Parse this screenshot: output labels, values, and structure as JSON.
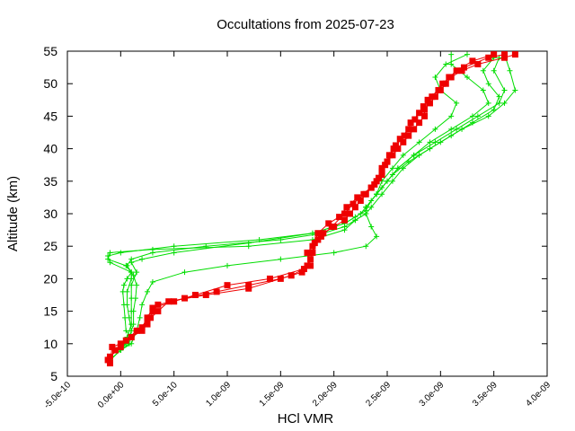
{
  "chart_data": {
    "type": "line",
    "title": "Occultations from 2025-07-23",
    "xlabel": "HCl VMR",
    "ylabel": "Altitude (km)",
    "xlim": [
      -5e-10,
      4e-09
    ],
    "ylim": [
      5,
      55
    ],
    "xticks": [
      "-5.0e-10",
      "0.0e+00",
      "5.0e-10",
      "1.0e-09",
      "1.5e-09",
      "2.0e-09",
      "2.5e-09",
      "3.0e-09",
      "3.5e-09",
      "4.0e-09"
    ],
    "xtick_values": [
      -5e-10,
      0,
      5e-10,
      1e-09,
      1.5e-09,
      2e-09,
      2.5e-09,
      3e-09,
      3.5e-09,
      4e-09
    ],
    "yticks": [
      "5",
      "10",
      "15",
      "20",
      "25",
      "30",
      "35",
      "40",
      "45",
      "50",
      "55"
    ],
    "ytick_values": [
      5,
      10,
      15,
      20,
      25,
      30,
      35,
      40,
      45,
      50,
      55
    ],
    "grid": false,
    "legend": "none",
    "colors": {
      "green": "#00dd00",
      "red": "#ee0000"
    },
    "series": [
      {
        "color": "#00dd00",
        "marker": "plus",
        "points": [
          [
            -1e-10,
            7.5
          ],
          [
            0.0,
            9
          ],
          [
            5e-11,
            10
          ],
          [
            1e-10,
            11
          ],
          [
            5e-11,
            12
          ],
          [
            4e-11,
            14
          ],
          [
            3e-11,
            16
          ],
          [
            2e-11,
            18
          ],
          [
            3e-11,
            19
          ],
          [
            6e-11,
            20
          ],
          [
            1e-10,
            21
          ],
          [
            5e-11,
            22
          ],
          [
            -1.2e-10,
            23
          ],
          [
            -1e-10,
            24
          ],
          [
            3e-10,
            24.5
          ],
          [
            1.2e-09,
            25
          ],
          [
            1.8e-09,
            26
          ],
          [
            2.1e-09,
            27.5
          ],
          [
            2.2e-09,
            29
          ],
          [
            2.3e-09,
            30
          ],
          [
            2.35e-09,
            31
          ],
          [
            2.45e-09,
            33
          ],
          [
            2.55e-09,
            35
          ],
          [
            2.65e-09,
            37
          ],
          [
            2.8e-09,
            39
          ],
          [
            3e-09,
            41
          ],
          [
            3.2e-09,
            43
          ],
          [
            3.45e-09,
            45
          ],
          [
            3.6e-09,
            47
          ],
          [
            3.7e-09,
            49
          ],
          [
            3.65e-09,
            52
          ],
          [
            3.6e-09,
            54.5
          ]
        ]
      },
      {
        "color": "#00dd00",
        "marker": "plus",
        "points": [
          [
            -1e-10,
            7.5
          ],
          [
            0.0,
            9
          ],
          [
            8e-11,
            10
          ],
          [
            1e-10,
            12
          ],
          [
            8e-11,
            14
          ],
          [
            6e-11,
            16
          ],
          [
            6e-11,
            18
          ],
          [
            1e-10,
            20
          ],
          [
            1e-10,
            21
          ],
          [
            -1e-10,
            22.5
          ],
          [
            -1.2e-10,
            23.5
          ],
          [
            0.0,
            24
          ],
          [
            5e-10,
            25
          ],
          [
            1.3e-09,
            26
          ],
          [
            1.8e-09,
            27
          ],
          [
            2.1e-09,
            28.5
          ],
          [
            2.25e-09,
            30
          ],
          [
            2.3e-09,
            31
          ],
          [
            2.4e-09,
            33
          ],
          [
            2.5e-09,
            35
          ],
          [
            2.6e-09,
            37
          ],
          [
            2.75e-09,
            39
          ],
          [
            2.95e-09,
            41
          ],
          [
            3.15e-09,
            43
          ],
          [
            3.35e-09,
            45
          ],
          [
            3.55e-09,
            47
          ],
          [
            3.6e-09,
            49
          ],
          [
            3.5e-09,
            52
          ],
          [
            3.55e-09,
            54
          ]
        ]
      },
      {
        "color": "#00dd00",
        "marker": "plus",
        "points": [
          [
            -1e-10,
            7.5
          ],
          [
            0.0,
            9
          ],
          [
            6e-11,
            11
          ],
          [
            1e-10,
            13
          ],
          [
            1e-10,
            15
          ],
          [
            1e-10,
            17
          ],
          [
            1e-10,
            19
          ],
          [
            1.5e-10,
            21
          ],
          [
            1e-10,
            22.5
          ],
          [
            2e-10,
            23
          ],
          [
            5e-10,
            24
          ],
          [
            1.2e-09,
            25.5
          ],
          [
            1.8e-09,
            27
          ],
          [
            2.1e-09,
            28.5
          ],
          [
            2.2e-09,
            29.5
          ],
          [
            2.3e-09,
            30.5
          ],
          [
            2.35e-09,
            32
          ],
          [
            2.45e-09,
            34
          ],
          [
            2.55e-09,
            36
          ],
          [
            2.7e-09,
            38
          ],
          [
            2.9e-09,
            40
          ],
          [
            3.1e-09,
            42
          ],
          [
            3.3e-09,
            44
          ],
          [
            3.5e-09,
            46
          ],
          [
            3.55e-09,
            48
          ],
          [
            3.45e-09,
            50
          ],
          [
            3.4e-09,
            52
          ],
          [
            3.5e-09,
            54
          ]
        ]
      },
      {
        "color": "#00dd00",
        "marker": "plus",
        "points": [
          [
            -1e-10,
            7.5
          ],
          [
            0.0,
            9
          ],
          [
            1e-10,
            10
          ],
          [
            1.5e-10,
            12
          ],
          [
            1.8e-10,
            14
          ],
          [
            2e-10,
            16
          ],
          [
            2.5e-10,
            18
          ],
          [
            3e-10,
            19.5
          ],
          [
            6e-10,
            21
          ],
          [
            1e-09,
            22
          ],
          [
            1.5e-09,
            23
          ],
          [
            2e-09,
            24
          ],
          [
            2.3e-09,
            25
          ],
          [
            2.4e-09,
            26.5
          ],
          [
            2.35e-09,
            28
          ],
          [
            2.3e-09,
            30
          ],
          [
            2.3e-09,
            31
          ],
          [
            2.4e-09,
            33
          ],
          [
            2.5e-09,
            35
          ],
          [
            2.6e-09,
            37
          ],
          [
            2.75e-09,
            39
          ],
          [
            2.9e-09,
            41
          ],
          [
            3.1e-09,
            43
          ],
          [
            3.3e-09,
            45
          ],
          [
            3.45e-09,
            47
          ],
          [
            3.4e-09,
            49
          ],
          [
            3.25e-09,
            51
          ],
          [
            3.1e-09,
            53
          ],
          [
            3.1e-09,
            54.5
          ]
        ]
      },
      {
        "color": "#00dd00",
        "marker": "plus",
        "points": [
          [
            -1e-10,
            7.5
          ],
          [
            0.0,
            9
          ],
          [
            8e-11,
            11
          ],
          [
            1.2e-10,
            13
          ],
          [
            1.2e-10,
            15
          ],
          [
            1.4e-10,
            17
          ],
          [
            1.5e-10,
            19
          ],
          [
            1.2e-10,
            20.5
          ],
          [
            6e-11,
            22
          ],
          [
            1e-10,
            23
          ],
          [
            3e-10,
            24
          ],
          [
            8e-10,
            25
          ],
          [
            1.5e-09,
            26
          ],
          [
            1.9e-09,
            27
          ],
          [
            2.1e-09,
            28
          ],
          [
            2.2e-09,
            29
          ],
          [
            2.3e-09,
            30
          ],
          [
            2.3e-09,
            31
          ],
          [
            2.4e-09,
            33
          ],
          [
            2.45e-09,
            35
          ],
          [
            2.55e-09,
            37
          ],
          [
            2.65e-09,
            39
          ],
          [
            2.8e-09,
            41
          ],
          [
            2.95e-09,
            43
          ],
          [
            3.1e-09,
            45
          ],
          [
            3.15e-09,
            47
          ],
          [
            3e-09,
            49
          ],
          [
            2.95e-09,
            51
          ],
          [
            3.05e-09,
            53
          ],
          [
            3.25e-09,
            54.5
          ]
        ]
      },
      {
        "color": "#ee0000",
        "marker": "square",
        "points": [
          [
            -1e-10,
            7
          ],
          [
            -8e-11,
            9.5
          ],
          [
            0.0,
            10
          ],
          [
            1e-10,
            11
          ],
          [
            2e-10,
            12
          ],
          [
            2.5e-10,
            13
          ],
          [
            2.8e-10,
            14
          ],
          [
            3e-10,
            15
          ],
          [
            3.5e-10,
            16
          ],
          [
            6e-10,
            17
          ],
          [
            9e-10,
            18
          ],
          [
            1.2e-09,
            19
          ],
          [
            1.5e-09,
            20
          ],
          [
            1.7e-09,
            21
          ],
          [
            1.75e-09,
            22
          ],
          [
            1.8e-09,
            24
          ],
          [
            1.85e-09,
            26
          ],
          [
            1.9e-09,
            27
          ],
          [
            2e-09,
            28
          ],
          [
            2.1e-09,
            29
          ],
          [
            2.15e-09,
            30
          ],
          [
            2.2e-09,
            31
          ],
          [
            2.25e-09,
            32
          ],
          [
            2.3e-09,
            33
          ],
          [
            2.35e-09,
            34
          ],
          [
            2.4e-09,
            35
          ],
          [
            2.45e-09,
            36
          ],
          [
            2.45e-09,
            37
          ],
          [
            2.5e-09,
            38
          ],
          [
            2.55e-09,
            39
          ],
          [
            2.6e-09,
            40
          ],
          [
            2.65e-09,
            41
          ],
          [
            2.7e-09,
            42
          ],
          [
            2.75e-09,
            43
          ],
          [
            2.8e-09,
            44
          ],
          [
            2.85e-09,
            45
          ],
          [
            2.85e-09,
            46
          ],
          [
            2.9e-09,
            47
          ],
          [
            2.95e-09,
            48
          ],
          [
            3e-09,
            49
          ],
          [
            3.05e-09,
            50
          ],
          [
            3.1e-09,
            51
          ],
          [
            3.2e-09,
            52
          ],
          [
            3.35e-09,
            53
          ],
          [
            3.6e-09,
            54
          ],
          [
            3.7e-09,
            54.5
          ]
        ]
      },
      {
        "color": "#ee0000",
        "marker": "square",
        "points": [
          [
            -1.2e-10,
            7.5
          ],
          [
            -5e-11,
            9
          ],
          [
            5e-11,
            10.5
          ],
          [
            1.5e-10,
            12
          ],
          [
            2.5e-10,
            13.5
          ],
          [
            3.5e-10,
            15
          ],
          [
            4.5e-10,
            16.5
          ],
          [
            8e-10,
            17.5
          ],
          [
            1.2e-09,
            18.5
          ],
          [
            1.6e-09,
            20.5
          ],
          [
            1.78e-09,
            22
          ],
          [
            1.75e-09,
            24
          ],
          [
            1.8e-09,
            25
          ],
          [
            1.85e-09,
            27
          ],
          [
            1.95e-09,
            28.5
          ],
          [
            2.05e-09,
            29.5
          ],
          [
            2.12e-09,
            31
          ],
          [
            2.22e-09,
            32.5
          ],
          [
            2.35e-09,
            34
          ],
          [
            2.42e-09,
            35.5
          ],
          [
            2.48e-09,
            37.5
          ],
          [
            2.52e-09,
            39
          ],
          [
            2.58e-09,
            40.5
          ],
          [
            2.66e-09,
            42
          ],
          [
            2.72e-09,
            44
          ],
          [
            2.8e-09,
            45.5
          ],
          [
            2.88e-09,
            47.5
          ],
          [
            2.98e-09,
            49
          ],
          [
            3.08e-09,
            51
          ],
          [
            3.22e-09,
            52.5
          ],
          [
            3.45e-09,
            54
          ],
          [
            3.6e-09,
            54.5
          ]
        ]
      },
      {
        "color": "#ee0000",
        "marker": "square",
        "points": [
          [
            -1e-10,
            8
          ],
          [
            0.0,
            9.5
          ],
          [
            1e-10,
            11
          ],
          [
            2e-10,
            12.5
          ],
          [
            2.5e-10,
            14
          ],
          [
            3e-10,
            15.5
          ],
          [
            5e-10,
            16.5
          ],
          [
            7e-10,
            17.5
          ],
          [
            1e-09,
            19
          ],
          [
            1.4e-09,
            20
          ],
          [
            1.72e-09,
            21.5
          ],
          [
            1.78e-09,
            23
          ],
          [
            1.82e-09,
            25.5
          ],
          [
            1.88e-09,
            26.5
          ],
          [
            1.98e-09,
            28
          ],
          [
            2.1e-09,
            30
          ],
          [
            2.18e-09,
            31.5
          ],
          [
            2.28e-09,
            33
          ],
          [
            2.38e-09,
            34.5
          ],
          [
            2.45e-09,
            36.5
          ],
          [
            2.5e-09,
            38
          ],
          [
            2.56e-09,
            40
          ],
          [
            2.62e-09,
            41.5
          ],
          [
            2.7e-09,
            43
          ],
          [
            2.76e-09,
            44.5
          ],
          [
            2.84e-09,
            46.5
          ],
          [
            2.92e-09,
            48
          ],
          [
            3.02e-09,
            50
          ],
          [
            3.15e-09,
            52
          ],
          [
            3.3e-09,
            53.5
          ],
          [
            3.5e-09,
            54.5
          ]
        ]
      }
    ]
  }
}
